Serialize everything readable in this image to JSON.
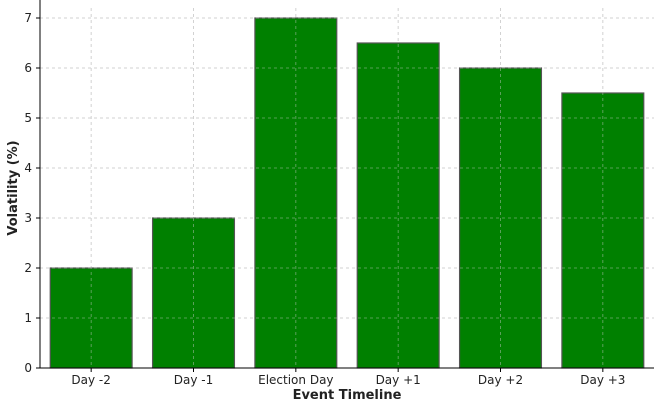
{
  "chart_data": {
    "type": "bar",
    "title": "",
    "xlabel": "Event Timeline",
    "ylabel": "Volatility (%)",
    "categories": [
      "Day -2",
      "Day -1",
      "Election Day",
      "Day +1",
      "Day +2",
      "Day +3"
    ],
    "values": [
      2,
      3,
      7,
      6.5,
      6,
      5.5
    ],
    "ylim": [
      0,
      7.2
    ],
    "yticks": [
      "0",
      "1",
      "2",
      "3",
      "4",
      "5",
      "6",
      "7"
    ],
    "grid": true,
    "legend": "none",
    "colors": {
      "bar_fill": "#008000",
      "bar_edge": "#555555",
      "grid": "#cccccc",
      "axis": "#000000",
      "text": "#222222"
    }
  }
}
